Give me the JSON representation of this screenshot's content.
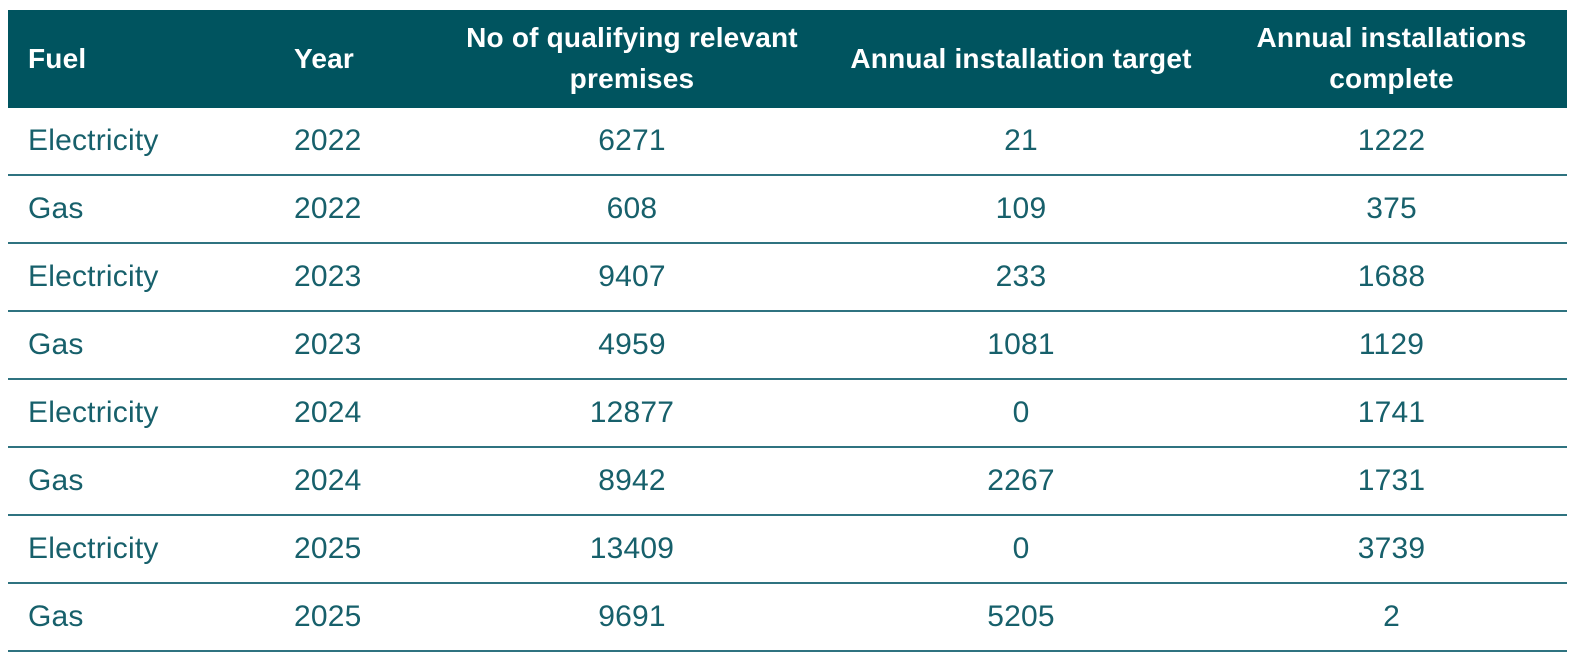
{
  "colors": {
    "header_bg": "#00545f",
    "header_text": "#ffffff",
    "body_text": "#17606b",
    "row_border": "#2f7380",
    "background": "#ffffff"
  },
  "chart_data": {
    "type": "table",
    "columns": [
      {
        "label": "Fuel",
        "align": "left"
      },
      {
        "label": "Year",
        "align": "left"
      },
      {
        "label": "No of qualifying relevant premises",
        "align": "center"
      },
      {
        "label": "Annual installation target",
        "align": "center"
      },
      {
        "label": "Annual installations complete",
        "align": "center"
      }
    ],
    "rows": [
      [
        "Electricity",
        "2022",
        "6271",
        "21",
        "1222"
      ],
      [
        "Gas",
        "2022",
        "608",
        "109",
        "375"
      ],
      [
        "Electricity",
        "2023",
        "9407",
        "233",
        "1688"
      ],
      [
        "Gas",
        "2023",
        "4959",
        "1081",
        "1129"
      ],
      [
        "Electricity",
        "2024",
        "12877",
        "0",
        "1741"
      ],
      [
        "Gas",
        "2024",
        "8942",
        "2267",
        "1731"
      ],
      [
        "Electricity",
        "2025",
        "13409",
        "0",
        "3739"
      ],
      [
        "Gas",
        "2025",
        "9691",
        "5205",
        "2"
      ]
    ]
  }
}
